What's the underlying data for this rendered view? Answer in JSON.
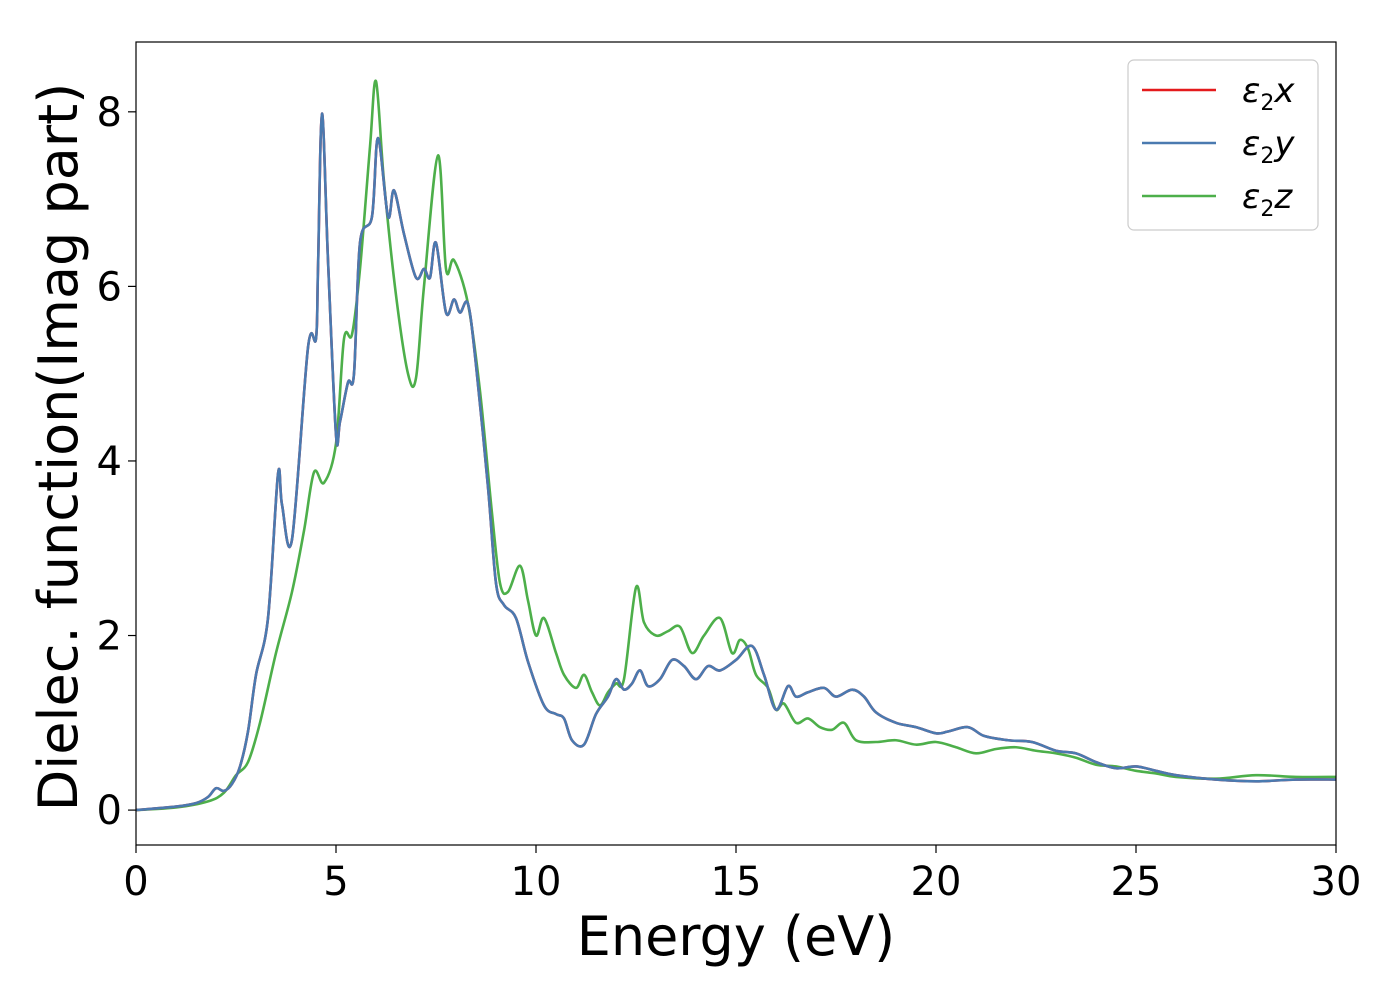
{
  "chart_data": {
    "type": "line",
    "xlabel": "Energy (eV)",
    "ylabel": "Dielec. function(Imag part)",
    "xlim": [
      0,
      30
    ],
    "ylim": [
      -0.4,
      8.8
    ],
    "xticks": [
      "0",
      "5",
      "10",
      "15",
      "20",
      "25",
      "30"
    ],
    "yticks": [
      "0",
      "2",
      "4",
      "6",
      "8"
    ],
    "grid": false,
    "legend_position": "top-right",
    "series": [
      {
        "name": "ε2x",
        "sym": "ε",
        "sub": "2",
        "axis": "x",
        "color": "#e41a1c",
        "x": [
          0,
          1,
          1.5,
          1.8,
          2.0,
          2.2,
          2.4,
          2.6,
          2.8,
          3.0,
          3.3,
          3.55,
          3.65,
          3.9,
          4.3,
          4.5,
          4.55,
          4.65,
          4.8,
          5.0,
          5.1,
          5.3,
          5.45,
          5.6,
          5.9,
          6.05,
          6.3,
          6.45,
          6.7,
          7.0,
          7.2,
          7.35,
          7.5,
          7.75,
          7.95,
          8.1,
          8.3,
          8.5,
          8.8,
          9.0,
          9.2,
          9.5,
          9.8,
          10.2,
          10.5,
          10.7,
          10.9,
          11.2,
          11.5,
          11.8,
          12.0,
          12.2,
          12.4,
          12.6,
          12.8,
          13.1,
          13.4,
          13.7,
          14.0,
          14.3,
          14.6,
          15.0,
          15.4,
          15.7,
          16.0,
          16.3,
          16.5,
          16.8,
          17.2,
          17.5,
          17.9,
          18.2,
          18.5,
          19.0,
          19.5,
          20.0,
          20.3,
          20.8,
          21.2,
          21.8,
          22.4,
          23.0,
          23.5,
          24.0,
          24.5,
          25.0,
          25.5,
          26.0,
          27.0,
          28.0,
          29.0,
          30.0
        ],
        "y": [
          0,
          0.04,
          0.08,
          0.15,
          0.25,
          0.22,
          0.3,
          0.5,
          0.9,
          1.55,
          2.2,
          3.85,
          3.5,
          3.1,
          5.3,
          5.4,
          6.2,
          7.98,
          6.3,
          4.3,
          4.45,
          4.9,
          5.0,
          6.5,
          6.8,
          7.7,
          6.8,
          7.1,
          6.6,
          6.1,
          6.2,
          6.1,
          6.5,
          5.7,
          5.85,
          5.7,
          5.8,
          5.1,
          3.7,
          2.6,
          2.35,
          2.2,
          1.7,
          1.2,
          1.1,
          1.05,
          0.8,
          0.75,
          1.1,
          1.3,
          1.5,
          1.38,
          1.45,
          1.6,
          1.42,
          1.5,
          1.72,
          1.65,
          1.5,
          1.65,
          1.6,
          1.72,
          1.88,
          1.55,
          1.15,
          1.42,
          1.3,
          1.35,
          1.4,
          1.3,
          1.38,
          1.3,
          1.12,
          1.0,
          0.95,
          0.88,
          0.9,
          0.95,
          0.85,
          0.8,
          0.78,
          0.68,
          0.65,
          0.55,
          0.48,
          0.5,
          0.45,
          0.4,
          0.35,
          0.33,
          0.35,
          0.35
        ]
      },
      {
        "name": "ε2y",
        "sym": "ε",
        "sub": "2",
        "axis": "y",
        "color": "#4a7ab0",
        "x": [
          0,
          1,
          1.5,
          1.8,
          2.0,
          2.2,
          2.4,
          2.6,
          2.8,
          3.0,
          3.3,
          3.55,
          3.65,
          3.9,
          4.3,
          4.5,
          4.55,
          4.65,
          4.8,
          5.0,
          5.1,
          5.3,
          5.45,
          5.6,
          5.9,
          6.05,
          6.3,
          6.45,
          6.7,
          7.0,
          7.2,
          7.35,
          7.5,
          7.75,
          7.95,
          8.1,
          8.3,
          8.5,
          8.8,
          9.0,
          9.2,
          9.5,
          9.8,
          10.2,
          10.5,
          10.7,
          10.9,
          11.2,
          11.5,
          11.8,
          12.0,
          12.2,
          12.4,
          12.6,
          12.8,
          13.1,
          13.4,
          13.7,
          14.0,
          14.3,
          14.6,
          15.0,
          15.4,
          15.7,
          16.0,
          16.3,
          16.5,
          16.8,
          17.2,
          17.5,
          17.9,
          18.2,
          18.5,
          19.0,
          19.5,
          20.0,
          20.3,
          20.8,
          21.2,
          21.8,
          22.4,
          23.0,
          23.5,
          24.0,
          24.5,
          25.0,
          25.5,
          26.0,
          27.0,
          28.0,
          29.0,
          30.0
        ],
        "y": [
          0,
          0.04,
          0.08,
          0.15,
          0.25,
          0.22,
          0.3,
          0.5,
          0.9,
          1.55,
          2.2,
          3.85,
          3.5,
          3.1,
          5.3,
          5.4,
          6.2,
          7.98,
          6.3,
          4.3,
          4.45,
          4.9,
          5.0,
          6.5,
          6.8,
          7.7,
          6.8,
          7.1,
          6.6,
          6.1,
          6.2,
          6.1,
          6.5,
          5.7,
          5.85,
          5.7,
          5.8,
          5.1,
          3.7,
          2.6,
          2.35,
          2.2,
          1.7,
          1.2,
          1.1,
          1.05,
          0.8,
          0.75,
          1.1,
          1.3,
          1.5,
          1.38,
          1.45,
          1.6,
          1.42,
          1.5,
          1.72,
          1.65,
          1.5,
          1.65,
          1.6,
          1.72,
          1.88,
          1.55,
          1.15,
          1.42,
          1.3,
          1.35,
          1.4,
          1.3,
          1.38,
          1.3,
          1.12,
          1.0,
          0.95,
          0.88,
          0.9,
          0.95,
          0.85,
          0.8,
          0.78,
          0.68,
          0.65,
          0.55,
          0.48,
          0.5,
          0.45,
          0.4,
          0.35,
          0.33,
          0.35,
          0.35
        ]
      },
      {
        "name": "ε2z",
        "sym": "ε",
        "sub": "2",
        "axis": "z",
        "color": "#4daf4a",
        "x": [
          0,
          1,
          1.8,
          2.2,
          2.5,
          2.8,
          3.1,
          3.5,
          3.9,
          4.2,
          4.45,
          4.7,
          5.0,
          5.2,
          5.4,
          5.6,
          5.85,
          6.0,
          6.2,
          6.5,
          6.8,
          7.0,
          7.2,
          7.55,
          7.75,
          7.95,
          8.3,
          8.6,
          8.9,
          9.1,
          9.3,
          9.6,
          9.8,
          10.0,
          10.2,
          10.5,
          10.7,
          11.0,
          11.2,
          11.4,
          11.6,
          11.8,
          12.0,
          12.2,
          12.5,
          12.7,
          13.0,
          13.3,
          13.6,
          13.9,
          14.2,
          14.6,
          14.9,
          15.1,
          15.3,
          15.5,
          15.8,
          16.0,
          16.2,
          16.5,
          16.8,
          17.1,
          17.4,
          17.7,
          18.0,
          18.5,
          19.0,
          19.5,
          20.0,
          20.5,
          21.0,
          21.5,
          22.0,
          22.5,
          23.0,
          23.5,
          24.0,
          24.5,
          25.0,
          25.5,
          26.0,
          27.0,
          28.0,
          29.0,
          30.0
        ],
        "y": [
          0,
          0.03,
          0.1,
          0.2,
          0.4,
          0.55,
          1.0,
          1.8,
          2.5,
          3.2,
          3.87,
          3.75,
          4.2,
          5.4,
          5.45,
          6.2,
          7.6,
          8.35,
          7.2,
          5.9,
          5.0,
          4.95,
          6.0,
          7.5,
          6.2,
          6.3,
          5.8,
          4.8,
          3.4,
          2.6,
          2.5,
          2.8,
          2.4,
          2.0,
          2.2,
          1.8,
          1.55,
          1.4,
          1.55,
          1.35,
          1.2,
          1.35,
          1.45,
          1.5,
          2.55,
          2.15,
          2.0,
          2.05,
          2.1,
          1.8,
          2.0,
          2.2,
          1.8,
          1.95,
          1.85,
          1.55,
          1.4,
          1.15,
          1.22,
          1.0,
          1.05,
          0.95,
          0.92,
          1.0,
          0.8,
          0.78,
          0.8,
          0.75,
          0.78,
          0.72,
          0.65,
          0.7,
          0.72,
          0.68,
          0.65,
          0.6,
          0.52,
          0.5,
          0.45,
          0.42,
          0.38,
          0.36,
          0.4,
          0.38,
          0.38
        ]
      }
    ]
  }
}
